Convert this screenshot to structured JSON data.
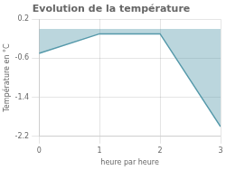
{
  "chart_data": {
    "type": "area",
    "title": "Evolution de la température",
    "xlabel": "heure par heure",
    "ylabel": "Température en °C",
    "x": [
      0,
      1,
      2,
      3
    ],
    "values": [
      -0.5,
      -0.1,
      -0.1,
      -2.0
    ],
    "color": "#5599aa",
    "xlim": [
      0,
      3
    ],
    "ylim": [
      -2.2,
      0.2
    ],
    "xticks": [
      0,
      1,
      2,
      3
    ],
    "yticks": [
      0.2,
      -0.6,
      -1.4,
      -2.2
    ],
    "grid": true
  }
}
